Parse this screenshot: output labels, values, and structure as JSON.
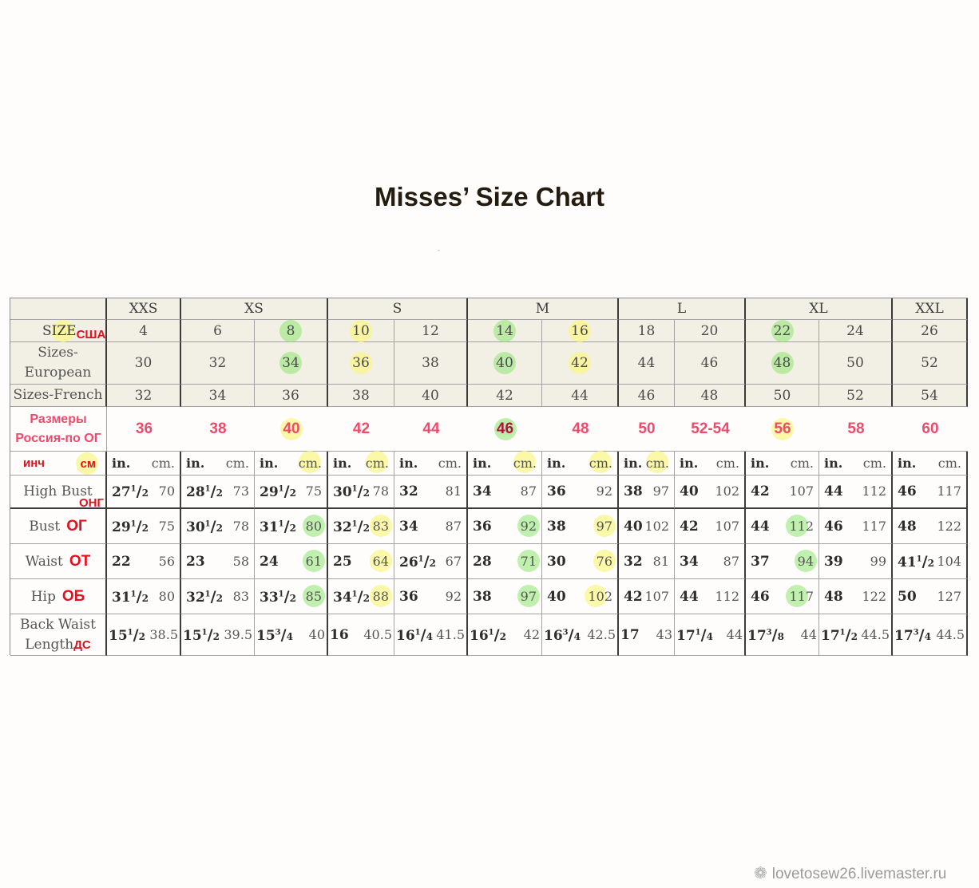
{
  "title": "Misses’ Size Chart",
  "letter_sizes": [
    "XXS",
    "XS",
    "S",
    "M",
    "L",
    "XL",
    "XXL"
  ],
  "size_row_label": "SIZE",
  "size_row_annotation": "США",
  "us_sizes": [
    "4",
    "6",
    "8",
    "10",
    "12",
    "14",
    "16",
    "18",
    "20",
    "22",
    "24",
    "26"
  ],
  "european_label": "Sizes-European",
  "european_sizes": [
    "30",
    "32",
    "34",
    "36",
    "38",
    "40",
    "42",
    "44",
    "46",
    "48",
    "50",
    "52"
  ],
  "french_label": "Sizes-French",
  "french_sizes": [
    "32",
    "34",
    "36",
    "38",
    "40",
    "42",
    "44",
    "46",
    "48",
    "50",
    "52",
    "54"
  ],
  "russia_label_line1": "Размеры",
  "russia_label_line2": "Россия-по ОГ",
  "russia_sizes": [
    "36",
    "38",
    "40",
    "42",
    "44",
    "46",
    "48",
    "50",
    "52-54",
    "56",
    "58",
    "60"
  ],
  "unit_label_inch": "инч",
  "unit_label_cm": "см",
  "unit_in": "in.",
  "unit_cm": "cm.",
  "rows": [
    {
      "label": "High Bust",
      "annotation": "ОНГ",
      "values": [
        [
          "27",
          "1",
          "2",
          "70"
        ],
        [
          "28",
          "1",
          "2",
          "73"
        ],
        [
          "29",
          "1",
          "2",
          "75"
        ],
        [
          "30",
          "1",
          "2",
          "78"
        ],
        [
          "32",
          "",
          "",
          "81"
        ],
        [
          "34",
          "",
          "",
          "87"
        ],
        [
          "36",
          "",
          "",
          "92"
        ],
        [
          "38",
          "",
          "",
          "97"
        ],
        [
          "40",
          "",
          "",
          "102"
        ],
        [
          "42",
          "",
          "",
          "107"
        ],
        [
          "44",
          "",
          "",
          "112"
        ],
        [
          "46",
          "",
          "",
          "117"
        ]
      ]
    },
    {
      "label": "Bust",
      "annotation": "ОГ",
      "values": [
        [
          "29",
          "1",
          "2",
          "75"
        ],
        [
          "30",
          "1",
          "2",
          "78"
        ],
        [
          "31",
          "1",
          "2",
          "80"
        ],
        [
          "32",
          "1",
          "2",
          "83"
        ],
        [
          "34",
          "",
          "",
          "87"
        ],
        [
          "36",
          "",
          "",
          "92"
        ],
        [
          "38",
          "",
          "",
          "97"
        ],
        [
          "40",
          "",
          "",
          "102"
        ],
        [
          "42",
          "",
          "",
          "107"
        ],
        [
          "44",
          "",
          "",
          "112"
        ],
        [
          "46",
          "",
          "",
          "117"
        ],
        [
          "48",
          "",
          "",
          "122"
        ]
      ]
    },
    {
      "label": "Waist",
      "annotation": "ОТ",
      "values": [
        [
          "22",
          "",
          "",
          "56"
        ],
        [
          "23",
          "",
          "",
          "58"
        ],
        [
          "24",
          "",
          "",
          "61"
        ],
        [
          "25",
          "",
          "",
          "64"
        ],
        [
          "26",
          "1",
          "2",
          "67"
        ],
        [
          "28",
          "",
          "",
          "71"
        ],
        [
          "30",
          "",
          "",
          "76"
        ],
        [
          "32",
          "",
          "",
          "81"
        ],
        [
          "34",
          "",
          "",
          "87"
        ],
        [
          "37",
          "",
          "",
          "94"
        ],
        [
          "39",
          "",
          "",
          "99"
        ],
        [
          "41",
          "1",
          "2",
          "104"
        ]
      ]
    },
    {
      "label": "Hip",
      "annotation": "ОБ",
      "values": [
        [
          "31",
          "1",
          "2",
          "80"
        ],
        [
          "32",
          "1",
          "2",
          "83"
        ],
        [
          "33",
          "1",
          "2",
          "85"
        ],
        [
          "34",
          "1",
          "2",
          "88"
        ],
        [
          "36",
          "",
          "",
          "92"
        ],
        [
          "38",
          "",
          "",
          "97"
        ],
        [
          "40",
          "",
          "",
          "102"
        ],
        [
          "42",
          "",
          "",
          "107"
        ],
        [
          "44",
          "",
          "",
          "112"
        ],
        [
          "46",
          "",
          "",
          "117"
        ],
        [
          "48",
          "",
          "",
          "122"
        ],
        [
          "50",
          "",
          "",
          "127"
        ]
      ]
    },
    {
      "label_line1": "Back Waist",
      "label_line2": "Length",
      "annotation": "ДС",
      "values": [
        [
          "15",
          "1",
          "2",
          "38.5"
        ],
        [
          "15",
          "1",
          "2",
          "39.5"
        ],
        [
          "15",
          "3",
          "4",
          "40"
        ],
        [
          "16",
          "",
          "",
          "40.5"
        ],
        [
          "16",
          "1",
          "4",
          "41.5"
        ],
        [
          "16",
          "1",
          "2",
          "42"
        ],
        [
          "16",
          "3",
          "4",
          "42.5"
        ],
        [
          "17",
          "",
          "",
          "43"
        ],
        [
          "17",
          "1",
          "4",
          "44"
        ],
        [
          "17",
          "3",
          "8",
          "44"
        ],
        [
          "17",
          "1",
          "2",
          "44.5"
        ],
        [
          "17",
          "3",
          "4",
          "44.5"
        ]
      ]
    }
  ],
  "highlight_colors": {
    "green": "#8ce66e",
    "yellow": "#faf58c"
  },
  "annotation_color": "#e3101f",
  "russia_color": "#ef4a6b",
  "watermark": "lovetosew26.livemaster.ru"
}
